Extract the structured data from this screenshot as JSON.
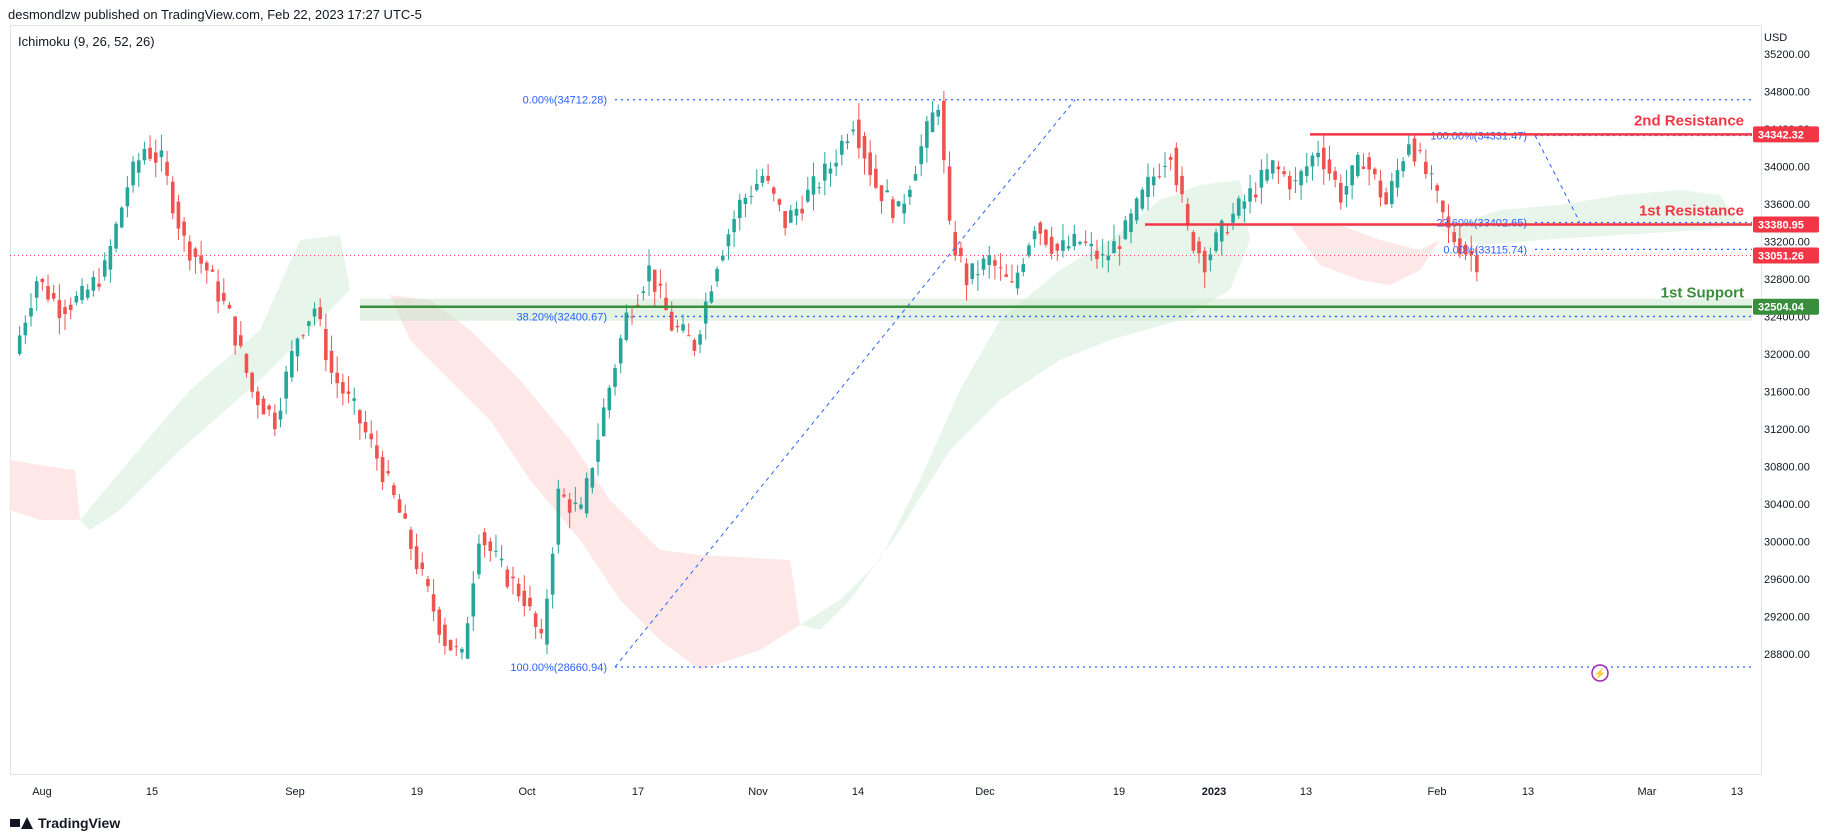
{
  "header": {
    "published_by": "desmondlzw published on TradingView.com, Feb 22, 2023 17:27 UTC-5",
    "indicator": "Ichimoku (9, 26, 52, 26)",
    "currency": "USD",
    "footer_brand": "TradingView"
  },
  "colors": {
    "up": "#26a69a",
    "down": "#ef5350",
    "resistance": "#f23645",
    "support": "#388e3c",
    "fib": "#2962ff",
    "cloud_bull": "#e6f4e8",
    "cloud_bear": "#fde4e4",
    "price_line": "#ef5350"
  },
  "chart_data": {
    "type": "candlestick",
    "symbol_currency": "USD",
    "ylim": [
      28400,
      35400
    ],
    "y_ticks": [
      "35200.00",
      "34800.00",
      "34400.00",
      "34000.00",
      "33600.00",
      "33200.00",
      "32800.00",
      "32400.00",
      "32000.00",
      "31600.00",
      "31200.00",
      "30800.00",
      "30400.00",
      "30000.00",
      "29600.00",
      "29200.00",
      "28800.00"
    ],
    "x_ticks": [
      "Aug",
      "15",
      "Sep",
      "19",
      "Oct",
      "17",
      "Nov",
      "14",
      "Dec",
      "19",
      "2023",
      "13",
      "Feb",
      "13",
      "Mar",
      "13"
    ],
    "x_ticks_bold": [
      "2023"
    ],
    "levels": [
      {
        "name": "2nd Resistance",
        "value": 34342.32,
        "label": "34342.32",
        "kind": "resistance"
      },
      {
        "name": "1st Resistance",
        "value": 33380.95,
        "label": "33380.95",
        "kind": "resistance"
      },
      {
        "name": "1st Support",
        "value": 32504.04,
        "label": "32504.04",
        "kind": "support"
      }
    ],
    "last_price": {
      "value": 33051.26,
      "label": "33051.26"
    },
    "fib_left": [
      {
        "text": "0.00%(34712.28)",
        "value": 34712.28
      },
      {
        "text": "38.20%(32400.67)",
        "value": 32400.67
      },
      {
        "text": "100.00%(28660.94)",
        "value": 28660.94
      }
    ],
    "fib_right": [
      {
        "text": "100.00%(34331.47)",
        "value": 34331.47
      },
      {
        "text": "23.60%(33402.65)",
        "value": 33402.65
      },
      {
        "text": "0.00%(33115.74)",
        "value": 33115.74
      }
    ],
    "annotations": [
      "2nd Resistance",
      "1st Resistance",
      "1st Support"
    ],
    "price_path": [
      [
        0,
        32000
      ],
      [
        4,
        32800
      ],
      [
        8,
        32500
      ],
      [
        12,
        32600
      ],
      [
        16,
        32900
      ],
      [
        20,
        33800
      ],
      [
        23,
        34200
      ],
      [
        26,
        34050
      ],
      [
        30,
        33200
      ],
      [
        34,
        32900
      ],
      [
        38,
        32400
      ],
      [
        42,
        31600
      ],
      [
        46,
        31300
      ],
      [
        50,
        32200
      ],
      [
        53,
        32500
      ],
      [
        56,
        31800
      ],
      [
        60,
        31400
      ],
      [
        64,
        30900
      ],
      [
        68,
        30300
      ],
      [
        72,
        29600
      ],
      [
        76,
        28950
      ],
      [
        79,
        28750
      ],
      [
        82,
        30100
      ],
      [
        86,
        29700
      ],
      [
        90,
        29400
      ],
      [
        93,
        28900
      ],
      [
        96,
        30500
      ],
      [
        100,
        30300
      ],
      [
        104,
        31400
      ],
      [
        108,
        32400
      ],
      [
        112,
        32900
      ],
      [
        116,
        32300
      ],
      [
        120,
        32100
      ],
      [
        124,
        33000
      ],
      [
        128,
        33600
      ],
      [
        132,
        33900
      ],
      [
        136,
        33400
      ],
      [
        140,
        33700
      ],
      [
        144,
        34000
      ],
      [
        148,
        34500
      ],
      [
        152,
        33800
      ],
      [
        156,
        33500
      ],
      [
        160,
        34200
      ],
      [
        163,
        34700
      ],
      [
        165,
        33300
      ],
      [
        168,
        32800
      ],
      [
        172,
        33000
      ],
      [
        176,
        32700
      ],
      [
        180,
        33400
      ],
      [
        184,
        33100
      ],
      [
        188,
        33200
      ],
      [
        192,
        33000
      ],
      [
        196,
        33300
      ],
      [
        200,
        33800
      ],
      [
        204,
        34200
      ],
      [
        207,
        33300
      ],
      [
        210,
        33000
      ],
      [
        214,
        33400
      ],
      [
        218,
        33700
      ],
      [
        222,
        34000
      ],
      [
        226,
        33800
      ],
      [
        230,
        34200
      ],
      [
        234,
        33700
      ],
      [
        238,
        34100
      ],
      [
        242,
        33600
      ],
      [
        246,
        34300
      ],
      [
        250,
        33800
      ],
      [
        253,
        33300
      ],
      [
        256,
        33100
      ],
      [
        258,
        33000
      ]
    ]
  }
}
